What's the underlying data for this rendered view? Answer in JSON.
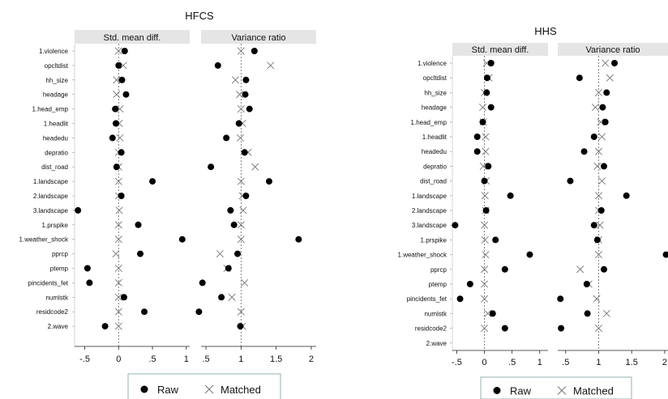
{
  "chart_data": [
    {
      "type": "scatter",
      "title": "HFCS",
      "variables": [
        "1.violence",
        "opcltdist",
        "hh_size",
        "headage",
        "1.head_emp",
        "1.headlit",
        "headedu",
        "depratio",
        "dist_road",
        "1.landscape",
        "2.landscape",
        "3.landscape",
        "1.prspike",
        "1.weather_shock",
        "pprcp",
        "ptemp",
        "pincidents_fet",
        "numlstk",
        "residcode2",
        "2.wave"
      ],
      "panels": [
        {
          "title": "Std. mean diff.",
          "xlim": [
            -0.65,
            1.05
          ],
          "ticks": [
            -0.5,
            0,
            0.5,
            1
          ],
          "tick_labels": [
            "-.5",
            "0",
            ".5",
            "1"
          ],
          "reference": 0,
          "series": [
            {
              "name": "Raw",
              "values": [
                0.09,
                0.0,
                0.05,
                0.11,
                -0.05,
                -0.04,
                -0.09,
                0.04,
                -0.03,
                0.5,
                0.04,
                -0.6,
                0.29,
                0.94,
                0.32,
                -0.46,
                -0.43,
                0.08,
                0.38,
                -0.2
              ]
            },
            {
              "name": "Matched",
              "values": [
                0.0,
                0.07,
                -0.03,
                -0.03,
                0.02,
                0.01,
                0.02,
                0.0,
                0.0,
                0.0,
                0.0,
                0.01,
                0.0,
                0.0,
                -0.04,
                0.0,
                0.0,
                0.0,
                0.0,
                0.0
              ]
            }
          ]
        },
        {
          "title": "Variance ratio",
          "xlim": [
            0.43,
            2.07
          ],
          "ticks": [
            0.5,
            1,
            1.5,
            2
          ],
          "tick_labels": [
            ".5",
            "1",
            "1.5",
            "2"
          ],
          "reference": 1,
          "series": [
            {
              "name": "Raw",
              "values": [
                1.19,
                0.67,
                1.07,
                1.06,
                1.12,
                0.97,
                0.79,
                1.05,
                0.57,
                1.4,
                1.07,
                0.85,
                0.9,
                1.82,
                0.95,
                0.82,
                0.45,
                0.72,
                0.4,
                0.99
              ]
            },
            {
              "name": "Matched",
              "values": [
                1.0,
                1.42,
                0.92,
                0.98,
                1.0,
                1.02,
                0.99,
                1.1,
                1.2,
                1.0,
                1.02,
                1.03,
                1.0,
                1.0,
                0.7,
                0.8,
                1.05,
                0.87,
                1.0,
                1.02
              ]
            }
          ]
        }
      ],
      "legend": [
        "Raw",
        "Matched"
      ],
      "legend_position": "bottom"
    },
    {
      "type": "scatter",
      "title": "HHS",
      "variables": [
        "1.violence",
        "opcltdist",
        "hh_size",
        "headage",
        "1.head_emp",
        "1.headlit",
        "headedu",
        "depratio",
        "dist_road",
        "1.landscape",
        "2.landscape",
        "3.landscape",
        "1.prspike",
        "1.weather_shock",
        "pprcp",
        "ptemp",
        "pincidents_fet",
        "numlstk",
        "residcode2",
        "2.wave"
      ],
      "panels": [
        {
          "title": "Std. mean diff.",
          "xlim": [
            -0.58,
            1.15
          ],
          "ticks": [
            -0.5,
            0,
            0.5,
            1
          ],
          "tick_labels": [
            "-.5",
            "0",
            ".5",
            "1"
          ],
          "reference": 0,
          "series": [
            {
              "name": "Raw",
              "values": [
                0.12,
                0.05,
                0.04,
                0.12,
                -0.03,
                -0.13,
                -0.13,
                0.07,
                0.0,
                0.47,
                0.03,
                -0.53,
                0.2,
                0.82,
                0.37,
                -0.26,
                -0.44,
                0.15,
                0.37,
                null
              ]
            },
            {
              "name": "Matched",
              "values": [
                0.04,
                0.08,
                0.0,
                -0.03,
                -0.02,
                0.02,
                0.02,
                -0.02,
                0.03,
                0.01,
                0.02,
                0.0,
                0.01,
                0.02,
                0.0,
                0.0,
                0.0,
                0.06,
                0.0,
                null
              ]
            }
          ]
        },
        {
          "title": "Variance ratio",
          "xlim": [
            0.38,
            2.05
          ],
          "ticks": [
            0.5,
            1,
            1.5,
            2
          ],
          "tick_labels": [
            ".5",
            "1",
            "1.5",
            "2"
          ],
          "reference": 1,
          "series": [
            {
              "name": "Raw",
              "values": [
                1.24,
                0.71,
                1.12,
                1.06,
                1.1,
                0.93,
                0.78,
                1.08,
                0.57,
                1.42,
                1.04,
                0.93,
                0.98,
                2.02,
                1.08,
                0.82,
                0.42,
                0.83,
                0.43,
                null
              ]
            },
            {
              "name": "Matched",
              "values": [
                1.1,
                1.17,
                1.0,
                0.95,
                1.03,
                1.05,
                1.0,
                0.98,
                1.05,
                1.0,
                1.0,
                1.02,
                1.0,
                1.0,
                0.72,
                0.85,
                0.97,
                1.12,
                1.0,
                null
              ]
            }
          ]
        }
      ],
      "legend": [
        "Raw",
        "Matched"
      ],
      "legend_position": "bottom"
    }
  ]
}
